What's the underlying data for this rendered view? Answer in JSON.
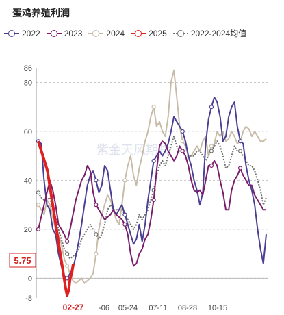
{
  "title": "蛋鸡养殖利润",
  "watermark": "紫金天风期货",
  "current_value_label": "5.75",
  "chart_data": {
    "type": "line",
    "ylim": [
      -8,
      86
    ],
    "yticks": [
      -8,
      0,
      20,
      40,
      60,
      80,
      86
    ],
    "xtick_labels": [
      "02-27",
      "-06",
      "05-24",
      "07-11",
      "08-28",
      "10-15"
    ],
    "grid": "horizontal dashed",
    "legend_position": "top",
    "series": [
      {
        "name": "2022",
        "color": "#4a3f94",
        "style": "solid",
        "values": [
          56,
          55,
          40,
          30,
          28,
          20,
          18,
          10,
          5,
          1,
          0,
          2,
          4,
          9,
          15,
          22,
          30,
          38,
          42,
          44,
          40,
          35,
          38,
          46,
          44,
          36,
          28,
          26,
          28,
          30,
          26,
          22,
          18,
          14,
          16,
          22,
          15,
          22,
          32,
          40,
          48,
          50,
          52,
          50,
          52,
          55,
          60,
          66,
          64,
          62,
          60,
          56,
          50,
          46,
          40,
          36,
          30,
          35,
          55,
          65,
          70,
          74,
          72,
          66,
          56,
          58,
          66,
          70,
          72,
          62,
          56,
          55,
          46,
          40,
          36,
          30,
          20,
          12,
          6,
          18
        ]
      },
      {
        "name": "2023",
        "color": "#7a1e6c",
        "style": "solid",
        "values": [
          20,
          25,
          30,
          35,
          40,
          36,
          30,
          22,
          20,
          18,
          15,
          20,
          26,
          32,
          36,
          40,
          42,
          46,
          44,
          35,
          30,
          28,
          26,
          24,
          25,
          26,
          28,
          26,
          25,
          24,
          22,
          18,
          10,
          5,
          6,
          10,
          12,
          16,
          18,
          24,
          32,
          44,
          54,
          56,
          55,
          52,
          50,
          48,
          50,
          54,
          52,
          50,
          46,
          40,
          36,
          35,
          36,
          34,
          40,
          46,
          46,
          48,
          46,
          40,
          35,
          28,
          28,
          36,
          40,
          42,
          45,
          42,
          40,
          38,
          38,
          34,
          32,
          30,
          28,
          28
        ]
      },
      {
        "name": "2024",
        "color": "#c8bca8",
        "style": "solid",
        "values": [
          30,
          28,
          26,
          32,
          30,
          25,
          20,
          18,
          14,
          8,
          5,
          2,
          -1,
          -2,
          -1,
          0,
          -2,
          -1,
          0,
          2,
          10,
          20,
          26,
          30,
          34,
          32,
          28,
          24,
          22,
          30,
          40,
          46,
          50,
          42,
          38,
          45,
          50,
          56,
          60,
          66,
          70,
          62,
          64,
          60,
          58,
          66,
          80,
          85,
          74,
          62,
          56,
          54,
          50,
          50,
          52,
          54,
          52,
          56,
          58,
          50,
          54,
          55,
          60,
          58,
          60,
          56,
          57,
          60,
          58,
          55,
          56,
          60,
          62,
          61,
          58,
          60,
          58,
          56,
          56,
          57
        ]
      },
      {
        "name": "2025",
        "color": "#e02020",
        "style": "solid",
        "values": [
          56,
          54,
          52,
          50,
          48,
          46,
          44,
          40,
          36,
          32,
          28,
          24,
          20,
          16,
          12,
          8,
          4,
          0,
          -4,
          -7,
          -5,
          0,
          2,
          5.75
        ]
      },
      {
        "name": "2022-2024均值",
        "color": "#707070",
        "style": "dotted",
        "values": [
          35,
          33,
          32,
          32,
          33,
          28,
          25,
          20,
          16,
          12,
          10,
          8,
          9,
          10,
          12,
          16,
          18,
          20,
          22,
          20,
          18,
          16,
          18,
          22,
          28,
          30,
          28,
          28,
          28,
          28,
          26,
          24,
          22,
          20,
          22,
          26,
          24,
          26,
          28,
          32,
          36,
          42,
          46,
          48,
          46,
          50,
          54,
          58,
          54,
          52,
          52,
          50,
          50,
          50,
          50,
          52,
          52,
          50,
          48,
          50,
          52,
          54,
          56,
          54,
          50,
          45,
          46,
          50,
          54,
          52,
          52,
          50,
          48,
          46,
          46,
          44,
          40,
          36,
          30,
          33
        ]
      }
    ]
  }
}
